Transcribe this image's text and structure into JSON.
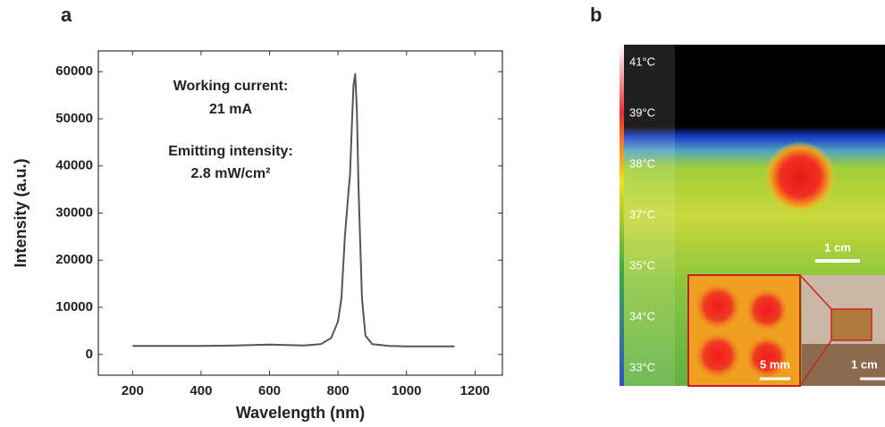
{
  "chart_data": {
    "type": "line",
    "x_label": "Wavelength (nm)",
    "y_label": "Intensity (a.u.)",
    "annotations": [
      "Working current:",
      "21 mA",
      "Emitting intensity:",
      "2.8 mW/cm²"
    ],
    "x": [
      200,
      300,
      400,
      500,
      600,
      700,
      750,
      780,
      800,
      810,
      820,
      830,
      835,
      840,
      845,
      850,
      855,
      860,
      870,
      880,
      900,
      950,
      1000,
      1100,
      1140
    ],
    "values": [
      1800,
      1800,
      1800,
      1900,
      2100,
      1900,
      2200,
      3500,
      7000,
      12000,
      25000,
      34000,
      38000,
      48000,
      57000,
      59500,
      52000,
      35000,
      12000,
      4000,
      2200,
      1800,
      1700,
      1700,
      1700
    ],
    "color": "#555555",
    "xlim": [
      100,
      1280
    ],
    "xticks": [
      200,
      400,
      600,
      800,
      1000,
      1200
    ],
    "ylim": [
      -4400,
      64400
    ],
    "yticks": [
      0,
      10000,
      20000,
      30000,
      40000,
      50000,
      60000
    ]
  },
  "panel_labels": [
    "a",
    "b"
  ],
  "thermal_image": {
    "colorbar_labels": [
      "41°C",
      "39°C",
      "38°C",
      "37°C",
      "35°C",
      "34°C",
      "33°C"
    ],
    "scale_bars": [
      "1 cm",
      "5 mm",
      "1 cm"
    ]
  }
}
